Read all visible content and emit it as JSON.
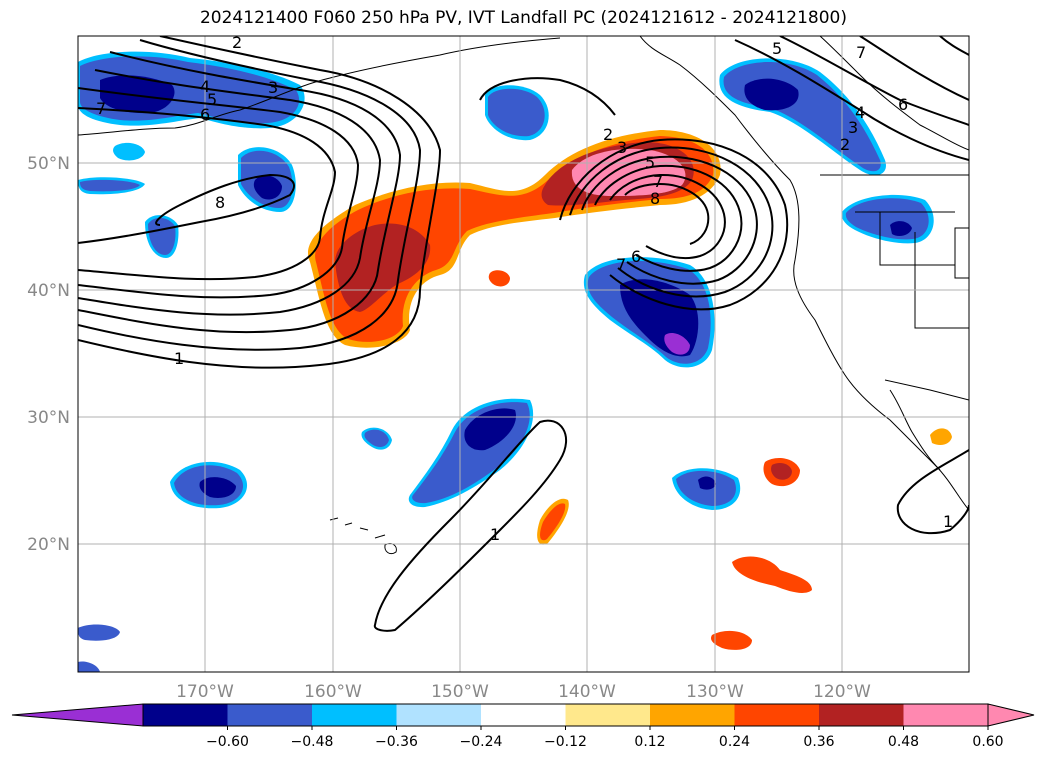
{
  "title": "2024121400 F060 250 hPa PV, IVT Landfall PC (2024121612 - 2024121800)",
  "lat_labels": [
    "50°N",
    "40°N",
    "30°N",
    "20°N"
  ],
  "lon_labels": [
    "170°W",
    "160°W",
    "150°W",
    "140°W",
    "130°W",
    "120°W"
  ],
  "colorbar": {
    "under_color": "#9a2fd4",
    "over_color": "#ff88b0",
    "colors": [
      "#00008b",
      "#3a5bcc",
      "#00bfff",
      "#b0e2ff",
      "#ffffff",
      "#ffe88c",
      "#ffa500",
      "#ff4500",
      "#b22222",
      "#ff88b0"
    ],
    "ticks": [
      "−0.60",
      "−0.48",
      "−0.36",
      "−0.24",
      "−0.12",
      "0.12",
      "0.24",
      "0.36",
      "0.48",
      "0.60"
    ]
  },
  "contour_labels": [
    "1",
    "2",
    "3",
    "4",
    "5",
    "6",
    "7",
    "8"
  ]
}
